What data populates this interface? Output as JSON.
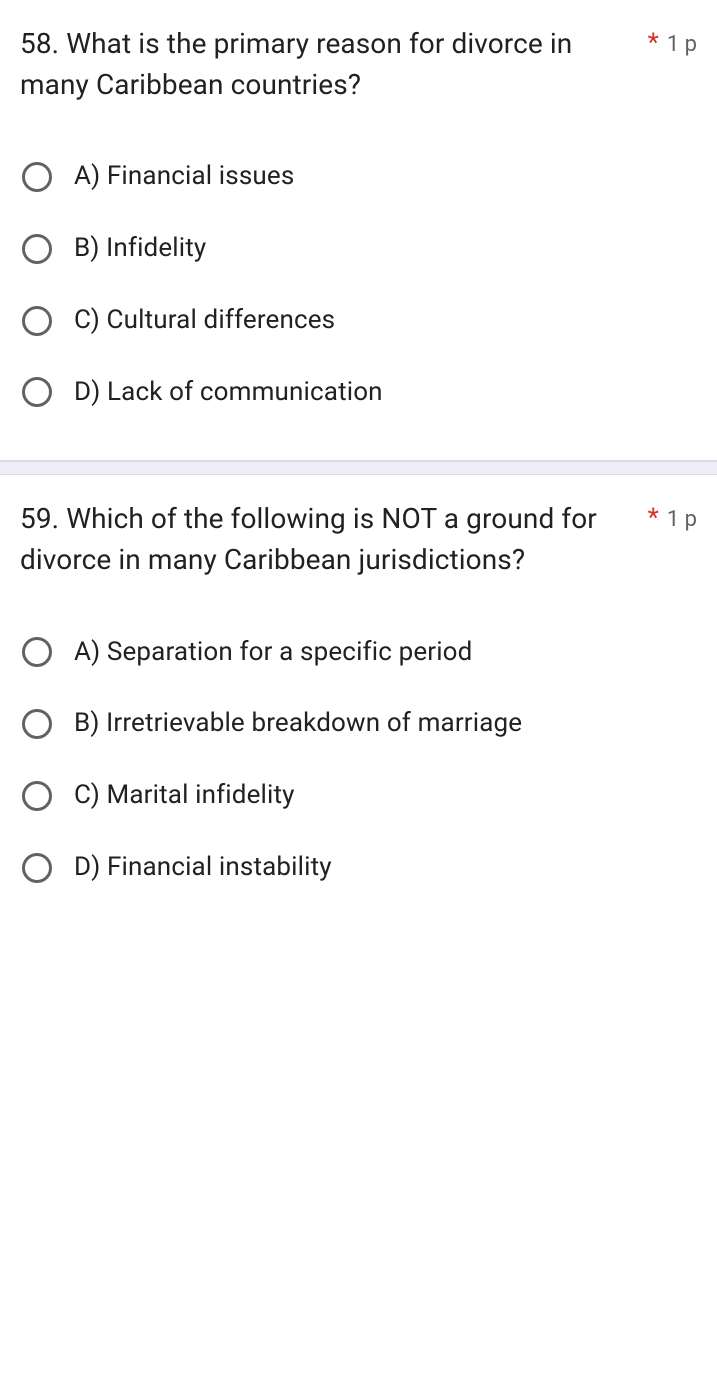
{
  "colors": {
    "required": "#d93025",
    "muted": "#5f6368",
    "text": "#202124",
    "divider_bg": "#f0ebf8",
    "border": "#dadce0",
    "radio_border": "#5f6368",
    "background": "#ffffff"
  },
  "typography": {
    "title_fontsize": 28,
    "option_fontsize": 26,
    "points_fontsize": 22
  },
  "questions": [
    {
      "number": "58.",
      "text": "What is the primary reason for divorce in many Caribbean countries?",
      "required_marker": "*",
      "points": "1 p",
      "options": [
        "A) Financial issues",
        "B) Infidelity",
        "C) Cultural differences",
        "D) Lack of communication"
      ]
    },
    {
      "number": "59.",
      "text": "Which of the following is NOT a ground for divorce in many Caribbean jurisdictions?",
      "required_marker": "*",
      "points": "1 p",
      "options": [
        "A) Separation for a specific period",
        "B) Irretrievable breakdown of marriage",
        "C) Marital infidelity",
        "D) Financial instability"
      ]
    }
  ]
}
